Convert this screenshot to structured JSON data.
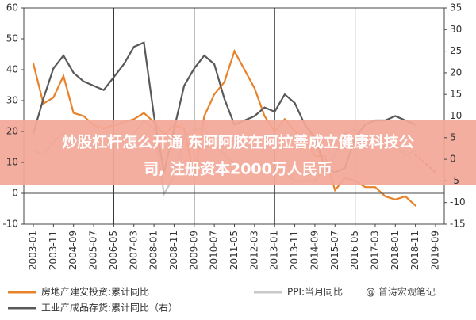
{
  "chart_data": {
    "type": "line",
    "categories": [
      "2003-01",
      null,
      "2003-11",
      null,
      "2004-09",
      null,
      "2005-07",
      null,
      "2006-05",
      null,
      "2007-03",
      null,
      "2008-01",
      null,
      "2008-11",
      null,
      "2009-09",
      null,
      "2010-07",
      null,
      "2011-05",
      null,
      "2012-03",
      null,
      "2013-01",
      null,
      "2013-11",
      null,
      "2014-09",
      null,
      "2015-07",
      null,
      "2016-05",
      null,
      "2017-03",
      null,
      "2018-01",
      null,
      "2018-11",
      null,
      "2019-09"
    ],
    "ylim": [
      -10,
      60
    ],
    "yticks": [
      -10,
      0,
      10,
      20,
      30,
      40,
      50,
      60
    ],
    "y2lim": [
      -15,
      35
    ],
    "y2ticks": [
      -15,
      -10,
      -5,
      0,
      5,
      10,
      15,
      20,
      25,
      30,
      35
    ],
    "series": [
      {
        "name": "房地产建安投资:累计同比",
        "color": "#e8822a",
        "values": [
          42,
          29,
          31,
          38,
          26,
          25,
          22,
          21,
          22,
          23,
          24,
          26,
          23,
          19,
          22,
          21,
          5,
          25,
          32,
          36,
          46,
          40,
          34,
          25,
          20,
          24,
          20,
          18,
          12,
          12,
          1,
          5,
          4,
          2,
          2,
          -1,
          -2,
          -1,
          -4,
          null,
          null
        ]
      },
      {
        "name": "PPI:当月同比",
        "color": "#c8c8c8",
        "axis": "y2",
        "values": [
          2,
          1,
          4,
          6,
          5,
          5,
          3,
          3,
          3,
          4,
          6,
          9,
          7,
          -8,
          -4,
          5,
          7,
          7,
          4,
          1,
          -1,
          -2,
          -2,
          -1,
          -2,
          -3,
          -5,
          -5,
          -5,
          -2,
          1,
          6,
          7,
          4,
          4,
          3,
          3,
          1,
          2,
          null,
          null
        ]
      },
      {
        "name": "工业产成品存货:累计同比（右）",
        "color": "#595959",
        "axis": "y2",
        "values": [
          6,
          14,
          21,
          24,
          20,
          18,
          17,
          16,
          19,
          22,
          26,
          27,
          10,
          -3,
          7,
          17,
          21,
          24,
          22,
          14,
          8,
          9,
          10,
          12,
          11,
          15,
          13,
          8,
          5,
          -2,
          -3,
          -2,
          5,
          8,
          9,
          9,
          10,
          9,
          8,
          null,
          null
        ]
      },
      {
        "color": "#d0403a",
        "axis": "y2",
        "dash": true,
        "values": [
          null,
          null,
          null,
          null,
          null,
          null,
          null,
          null,
          null,
          null,
          null,
          null,
          null,
          null,
          null,
          null,
          null,
          null,
          null,
          null,
          null,
          null,
          null,
          null,
          null,
          null,
          null,
          null,
          null,
          null,
          null,
          null,
          null,
          null,
          null,
          null,
          null,
          null,
          1,
          -1,
          -3
        ]
      }
    ]
  },
  "overlay": {
    "lines": [
      "炒股杠杆怎么开通 东阿阿胶在阿拉善成立健康科技公",
      "司, 注册资本2000万人民币"
    ]
  },
  "watermark": "@ 普涛宏观笔记"
}
